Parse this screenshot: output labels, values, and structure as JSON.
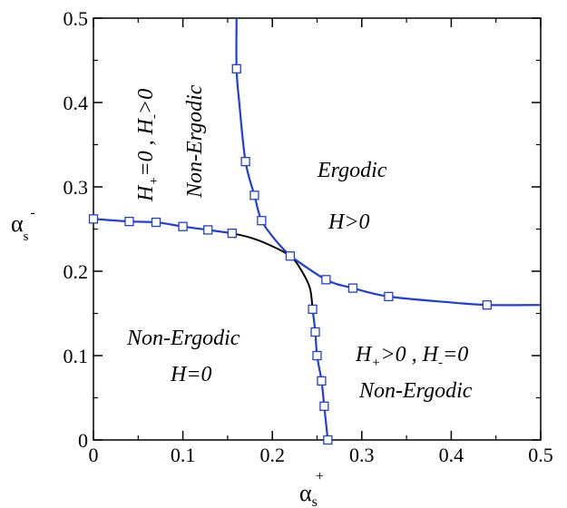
{
  "chart_data": {
    "type": "line",
    "xlim": [
      0,
      0.5
    ],
    "ylim": [
      0,
      0.5
    ],
    "x_ticks": [
      "0",
      "0.1",
      "0.2",
      "0.3",
      "0.4",
      "0.5"
    ],
    "y_ticks": [
      "0",
      "0.1",
      "0.2",
      "0.3",
      "0.4",
      "0.5"
    ],
    "xlabel": {
      "base": "α",
      "sub": "s",
      "sup": "+"
    },
    "ylabel": {
      "base": "α",
      "sub": "s",
      "sup": "-"
    },
    "grid": false,
    "series": [
      {
        "role": "blue-curve-vertical-upper",
        "color": "#1f3fd8",
        "line": [
          [
            0.16,
            0.5
          ],
          [
            0.16,
            0.44
          ],
          [
            0.163,
            0.4
          ],
          [
            0.17,
            0.33
          ],
          [
            0.18,
            0.29
          ],
          [
            0.188,
            0.26
          ],
          [
            0.205,
            0.235
          ],
          [
            0.22,
            0.218
          ]
        ],
        "markers": [
          [
            0.16,
            0.44
          ],
          [
            0.17,
            0.33
          ],
          [
            0.18,
            0.29
          ],
          [
            0.188,
            0.26
          ],
          [
            0.22,
            0.218
          ]
        ]
      },
      {
        "role": "blue-curve-horizontal-left",
        "color": "#1f3fd8",
        "line": [
          [
            0.0,
            0.262
          ],
          [
            0.04,
            0.259
          ],
          [
            0.07,
            0.258
          ],
          [
            0.1,
            0.253
          ],
          [
            0.128,
            0.249
          ],
          [
            0.155,
            0.245
          ]
        ],
        "markers": [
          [
            0.0,
            0.262
          ],
          [
            0.04,
            0.259
          ],
          [
            0.07,
            0.258
          ],
          [
            0.1,
            0.253
          ],
          [
            0.128,
            0.249
          ],
          [
            0.155,
            0.245
          ]
        ]
      },
      {
        "role": "blue-curve-horizontal-right",
        "color": "#1f3fd8",
        "line": [
          [
            0.22,
            0.218
          ],
          [
            0.26,
            0.19
          ],
          [
            0.29,
            0.18
          ],
          [
            0.33,
            0.17
          ],
          [
            0.4,
            0.163
          ],
          [
            0.44,
            0.16
          ],
          [
            0.5,
            0.16
          ]
        ],
        "markers": [
          [
            0.26,
            0.19
          ],
          [
            0.29,
            0.18
          ],
          [
            0.33,
            0.17
          ],
          [
            0.44,
            0.16
          ]
        ]
      },
      {
        "role": "blue-curve-vertical-lower",
        "color": "#1f3fd8",
        "line": [
          [
            0.245,
            0.155
          ],
          [
            0.248,
            0.128
          ],
          [
            0.25,
            0.1
          ],
          [
            0.255,
            0.07
          ],
          [
            0.258,
            0.04
          ],
          [
            0.262,
            0.0
          ]
        ],
        "markers": [
          [
            0.245,
            0.155
          ],
          [
            0.248,
            0.128
          ],
          [
            0.25,
            0.1
          ],
          [
            0.255,
            0.07
          ],
          [
            0.258,
            0.04
          ],
          [
            0.262,
            0.0
          ]
        ]
      },
      {
        "role": "black-arc",
        "color": "#000000",
        "line": [
          [
            0.155,
            0.245
          ],
          [
            0.175,
            0.24
          ],
          [
            0.195,
            0.232
          ],
          [
            0.22,
            0.218
          ],
          [
            0.233,
            0.2
          ],
          [
            0.242,
            0.18
          ],
          [
            0.245,
            0.155
          ]
        ],
        "markers": []
      }
    ]
  },
  "regions": {
    "ergodic": {
      "title": "Ergodic",
      "condition": "H>0"
    },
    "upper_left": {
      "H1": "H",
      "sub1": "+",
      "rel1": "=0 , ",
      "H2": "H",
      "sub2": "-",
      "rel2": ">0",
      "state": "Non-Ergodic"
    },
    "lower_left": {
      "state": "Non-Ergodic",
      "condition": "H=0"
    },
    "lower_right": {
      "H1": "H",
      "sub1": "+",
      "rel1": ">0 , ",
      "H2": "H",
      "sub2": "-",
      "rel2": "=0",
      "state": "Non-Ergodic"
    }
  }
}
